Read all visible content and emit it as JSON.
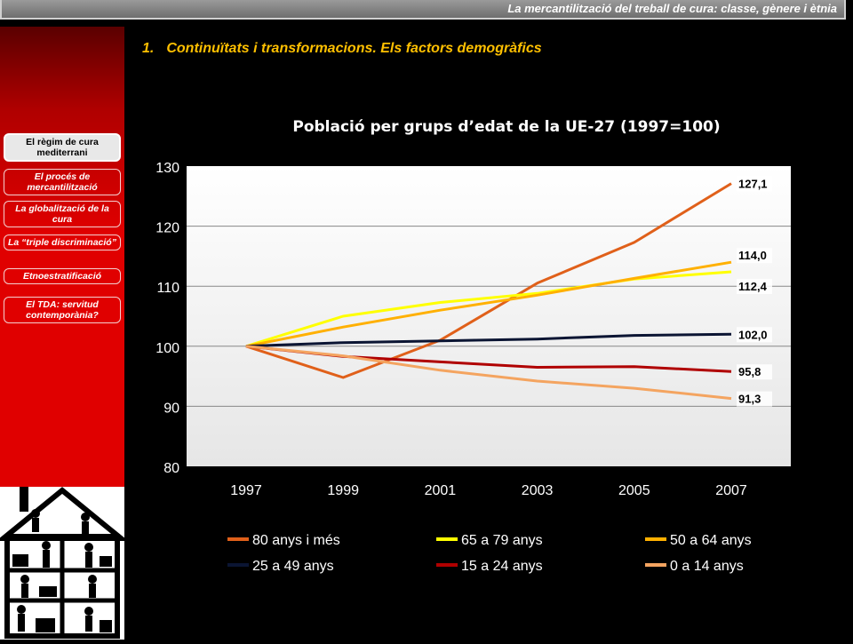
{
  "header": {
    "title": "La mercantilització del treball de cura: classe, gènere i ètnia"
  },
  "section": {
    "number": "1.",
    "title": "Continuïtats i transformacions. Els factors demogràfics"
  },
  "sidebar": {
    "items": [
      {
        "label": "El règim de cura mediterrani",
        "active": true
      },
      {
        "label": "El procés de mercantilització"
      },
      {
        "label": "La globalització de la cura"
      },
      {
        "label": "La “triple discriminació”"
      },
      {
        "label": "Etnoestratificació"
      },
      {
        "label": "El TDA: servitud contemporània?"
      }
    ],
    "illustration_icon": "house-cutaway-illustration"
  },
  "chart_data": {
    "type": "line",
    "title": "Població per grups d’edat de la UE-27 (1997=100)",
    "xlabel": "",
    "ylabel": "",
    "x": [
      "1997",
      "1999",
      "2001",
      "2003",
      "2005",
      "2007"
    ],
    "ylim": [
      80,
      130
    ],
    "yticks": [
      "80",
      "90",
      "100",
      "110",
      "120",
      "130"
    ],
    "grid": true,
    "legend_position": "bottom",
    "series": [
      {
        "name": "80 anys i més",
        "color": "#e0601a",
        "values": [
          100,
          94.8,
          101,
          110.5,
          117.3,
          127.1
        ],
        "end_label": "127,1"
      },
      {
        "name": "65 a 79 anys",
        "color": "#ffff00",
        "values": [
          100,
          105,
          107.3,
          108.8,
          111.2,
          112.4
        ],
        "end_label": "112,4"
      },
      {
        "name": "50 a 64 anys",
        "color": "#ffb000",
        "values": [
          100,
          103.2,
          106,
          108.5,
          111.3,
          114.0
        ],
        "end_label": "114,0"
      },
      {
        "name": "25 a 49 anys",
        "color": "#0b1533",
        "values": [
          100,
          100.6,
          100.9,
          101.2,
          101.8,
          102.0
        ],
        "end_label": "102,0"
      },
      {
        "name": "15 a 24 anys",
        "color": "#b00000",
        "values": [
          100,
          98.3,
          97.4,
          96.5,
          96.6,
          95.8
        ],
        "end_label": "95,8"
      },
      {
        "name": "0 a 14 anys",
        "color": "#f4a460",
        "values": [
          100,
          98.4,
          96,
          94.2,
          93,
          91.3
        ],
        "end_label": "91,3"
      }
    ]
  }
}
